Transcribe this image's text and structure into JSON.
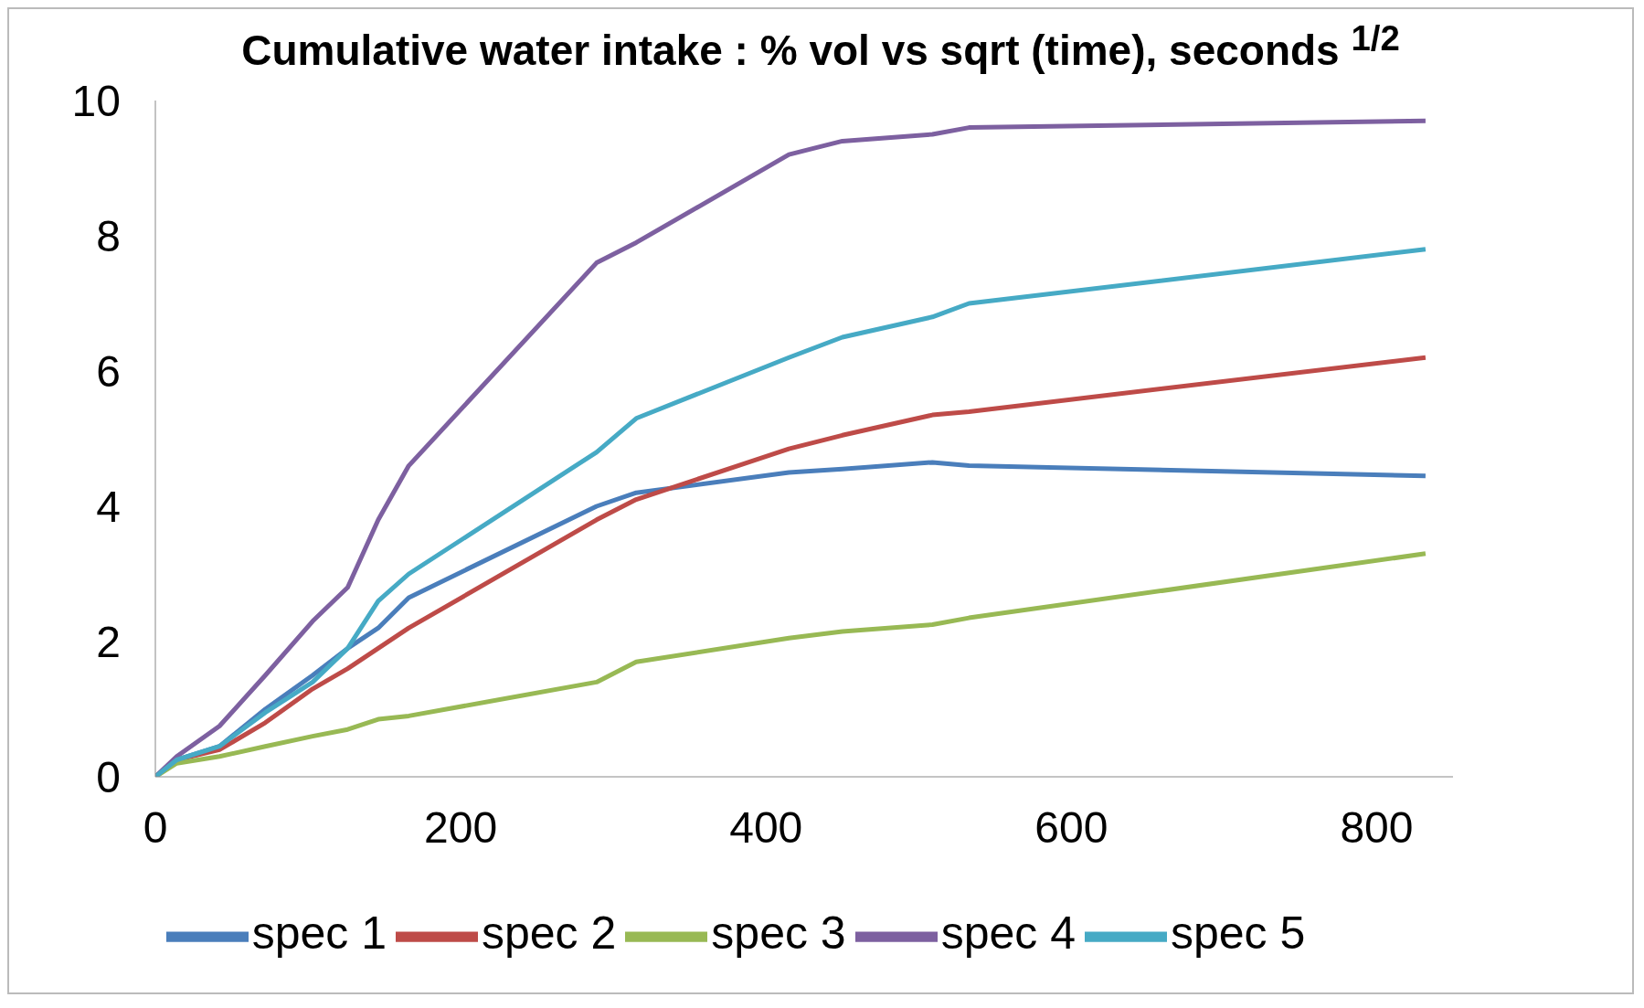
{
  "chart_data": {
    "type": "line",
    "title": "Cumulative water intake : % vol  vs  sqrt (time), seconds $^{1/2}$",
    "x": [
      0,
      14,
      42,
      72,
      103,
      126,
      146,
      166,
      289,
      315,
      415,
      450,
      509,
      533,
      832
    ],
    "series": [
      {
        "name": "spec 1",
        "color": "#4a7ebb",
        "values": [
          0,
          0.25,
          0.45,
          1.0,
          1.5,
          1.9,
          2.2,
          2.65,
          4.0,
          4.2,
          4.5,
          4.55,
          4.65,
          4.6,
          4.45
        ]
      },
      {
        "name": "spec 2",
        "color": "#be4b48",
        "values": [
          0,
          0.25,
          0.4,
          0.8,
          1.3,
          1.6,
          1.9,
          2.2,
          3.8,
          4.1,
          4.85,
          5.05,
          5.35,
          5.4,
          6.2
        ]
      },
      {
        "name": "spec 3",
        "color": "#98b954",
        "values": [
          0,
          0.2,
          0.3,
          0.45,
          0.6,
          0.7,
          0.85,
          0.9,
          1.4,
          1.7,
          2.05,
          2.15,
          2.25,
          2.35,
          3.3
        ]
      },
      {
        "name": "spec 4",
        "color": "#7d60a0",
        "values": [
          0,
          0.3,
          0.75,
          1.5,
          2.3,
          2.8,
          3.8,
          4.6,
          7.6,
          7.9,
          9.2,
          9.4,
          9.5,
          9.6,
          9.7
        ]
      },
      {
        "name": "spec 5",
        "color": "#46aac5",
        "values": [
          0,
          0.25,
          0.45,
          0.95,
          1.4,
          1.9,
          2.6,
          3.0,
          4.8,
          5.3,
          6.2,
          6.5,
          6.8,
          7.0,
          7.8
        ]
      }
    ],
    "xlim": [
      0,
      850
    ],
    "xticks": [
      0,
      200,
      400,
      600,
      800
    ],
    "ylim": [
      0,
      10
    ],
    "yticks": [
      0,
      2,
      4,
      6,
      8,
      10
    ],
    "grid": false,
    "legend": "bottom",
    "marker": "none",
    "line_style": "solid"
  }
}
